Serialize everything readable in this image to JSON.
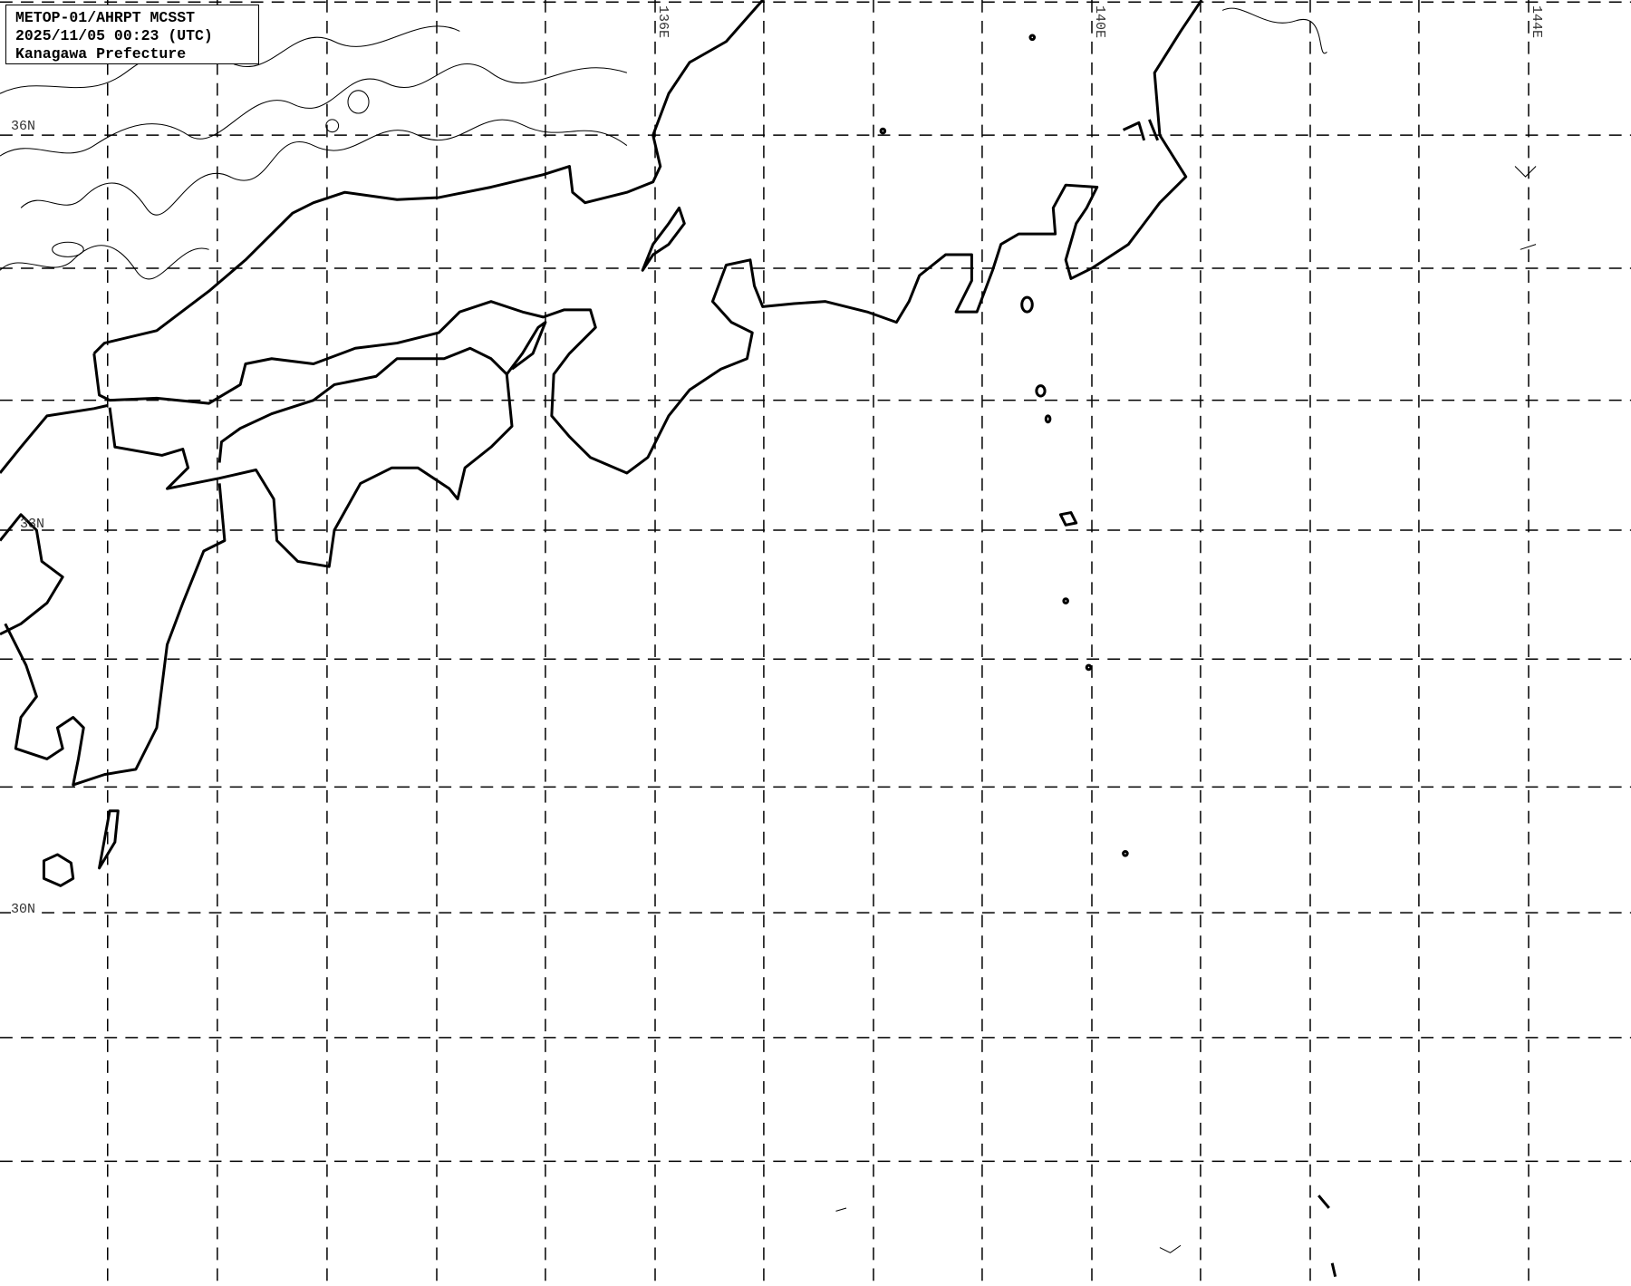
{
  "info_box": {
    "line1": "METOP-01/AHRPT MCSST",
    "line2": "2025/11/05 00:23 (UTC)",
    "line3": "Kanagawa Prefecture"
  },
  "lat_labels": [
    "36N",
    "33N",
    "30N"
  ],
  "lon_labels": [
    "136E",
    "140E",
    "144E"
  ],
  "colors": {
    "background": "#ffffff",
    "lines": "#000000"
  }
}
